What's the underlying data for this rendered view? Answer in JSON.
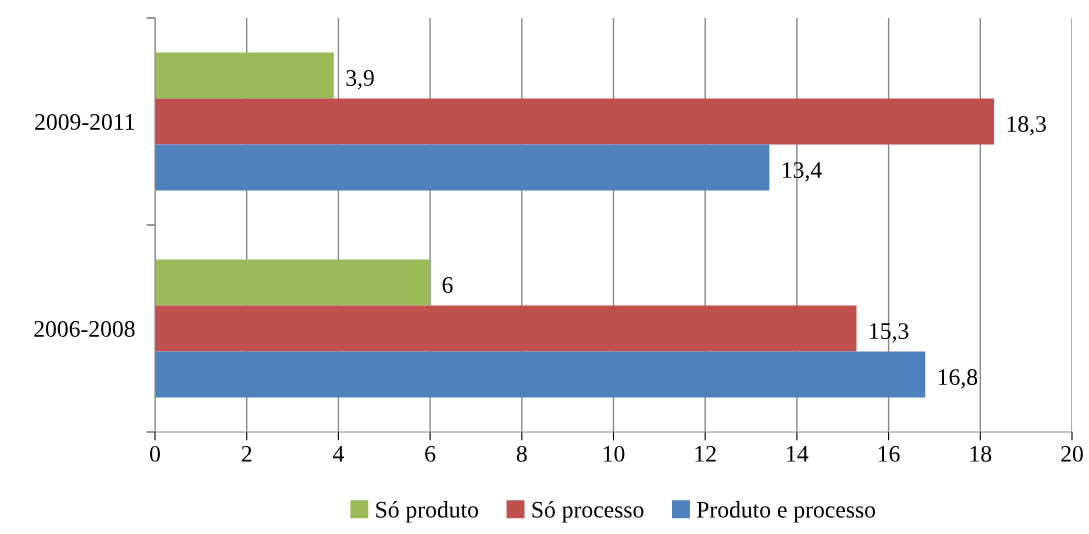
{
  "chart_data": {
    "type": "bar",
    "orientation": "horizontal",
    "categories": [
      "2009-2011",
      "2006-2008"
    ],
    "series": [
      {
        "name": "Só produto",
        "color": "#9bbb59",
        "values": [
          3.9,
          6
        ],
        "value_labels": [
          "3,9",
          "6"
        ]
      },
      {
        "name": "Só processo",
        "color": "#c0504d",
        "values": [
          18.3,
          15.3
        ],
        "value_labels": [
          "18,3",
          "15,3"
        ]
      },
      {
        "name": "Produto e processo",
        "color": "#4f81bd",
        "values": [
          13.4,
          16.8
        ],
        "value_labels": [
          "13,4",
          "16,8"
        ]
      }
    ],
    "xlim": [
      0,
      20
    ],
    "xticks": [
      0,
      2,
      4,
      6,
      8,
      10,
      12,
      14,
      16,
      18,
      20
    ],
    "grid": "x",
    "legend": "bottom"
  }
}
